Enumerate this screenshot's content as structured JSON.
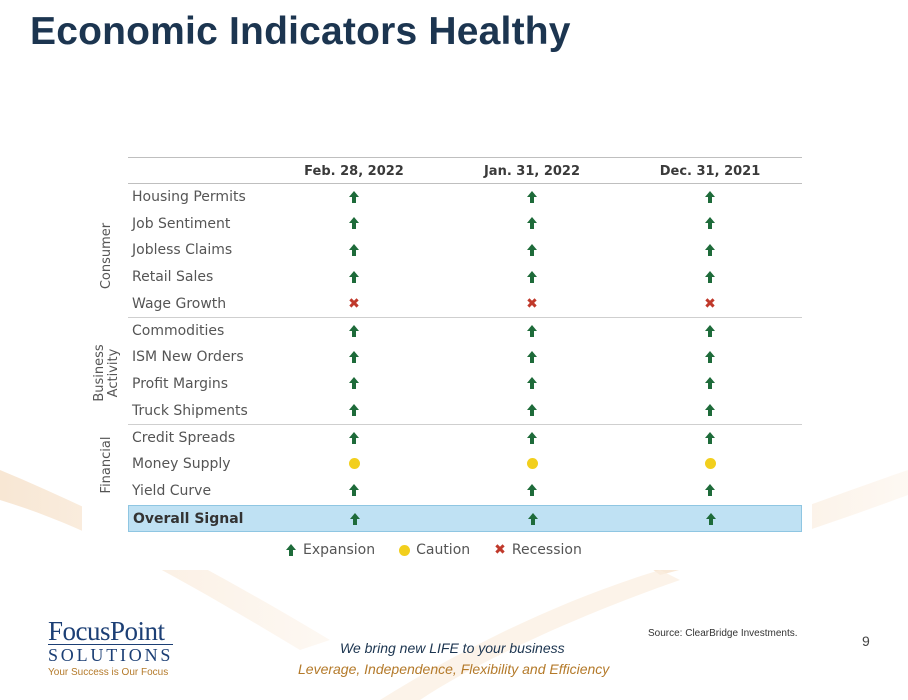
{
  "title": "Economic Indicators Healthy",
  "columns": [
    "Feb. 28, 2022",
    "Jan. 31, 2022",
    "Dec. 31, 2021"
  ],
  "groups": [
    "Consumer",
    "Business Activity",
    "Financial"
  ],
  "rows": [
    {
      "label": "Housing Permits",
      "signals": [
        "up",
        "up",
        "up"
      ]
    },
    {
      "label": "Job Sentiment",
      "signals": [
        "up",
        "up",
        "up"
      ]
    },
    {
      "label": "Jobless Claims",
      "signals": [
        "up",
        "up",
        "up"
      ]
    },
    {
      "label": "Retail Sales",
      "signals": [
        "up",
        "up",
        "up"
      ]
    },
    {
      "label": "Wage Growth",
      "signals": [
        "x",
        "x",
        "x"
      ]
    },
    {
      "label": "Commodities",
      "signals": [
        "up",
        "up",
        "up"
      ]
    },
    {
      "label": "ISM New Orders",
      "signals": [
        "up",
        "up",
        "up"
      ]
    },
    {
      "label": "Profit Margins",
      "signals": [
        "up",
        "up",
        "up"
      ]
    },
    {
      "label": "Truck Shipments",
      "signals": [
        "up",
        "up",
        "up"
      ]
    },
    {
      "label": "Credit Spreads",
      "signals": [
        "up",
        "up",
        "up"
      ]
    },
    {
      "label": "Money Supply",
      "signals": [
        "dot",
        "dot",
        "dot"
      ]
    },
    {
      "label": "Yield Curve",
      "signals": [
        "up",
        "up",
        "up"
      ]
    }
  ],
  "overall": {
    "label": "Overall Signal",
    "signals": [
      "up",
      "up",
      "up"
    ]
  },
  "legend": {
    "expansion": "Expansion",
    "caution": "Caution",
    "recession": "Recession"
  },
  "logo": {
    "main": "FocusPoint",
    "sub": "SOLUTIONS",
    "tag": "Your Success is Our Focus"
  },
  "tagline": {
    "line1": "We bring new LIFE to your business",
    "line2": "Leverage, Independence, Flexibility and Efficiency"
  },
  "source": "Source: ClearBridge Investments.",
  "page_number": "9",
  "colors": {
    "expansion": "#1e6b3a",
    "caution": "#f2cf1d",
    "recession": "#c0392b",
    "title": "#1c3550",
    "overall_bg": "#bfe1f3"
  },
  "icons": {
    "up": "arrow-up-icon",
    "x": "x-mark-icon",
    "dot": "caution-dot-icon"
  }
}
